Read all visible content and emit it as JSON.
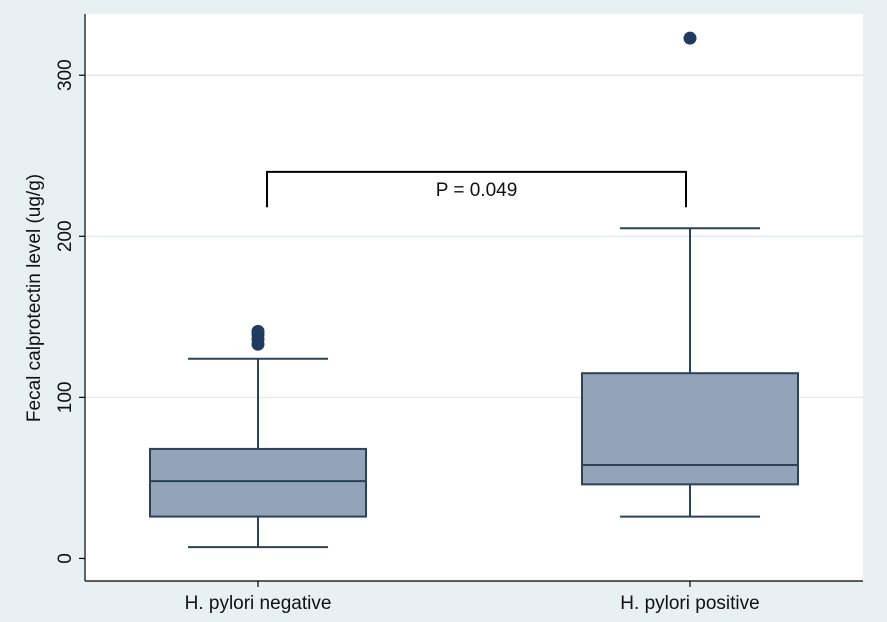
{
  "chart_data": {
    "type": "box",
    "title": "",
    "xlabel": "",
    "ylabel": "Fecal calprotectin level (ug/g)",
    "ylim": [
      -14,
      338
    ],
    "yticks": [
      0,
      100,
      200,
      300
    ],
    "grid": true,
    "categories": [
      "H. pylori negative",
      "H. pylori positive"
    ],
    "boxes": [
      {
        "category": "H. pylori negative",
        "whisker_low": 7,
        "q1": 26,
        "median": 48,
        "q3": 68,
        "whisker_high": 124,
        "outliers": [
          133,
          136,
          139,
          141
        ]
      },
      {
        "category": "H. pylori positive",
        "whisker_low": 26,
        "q1": 46,
        "median": 58,
        "q3": 115,
        "whisker_high": 205,
        "outliers": [
          323
        ]
      }
    ],
    "annotation": {
      "text": "P = 0.049",
      "between": [
        "H. pylori negative",
        "H. pylori positive"
      ],
      "bracket_top": 240,
      "bracket_bottom": 218
    },
    "colors": {
      "box_fill": "#93a4b8",
      "box_stroke": "#2b4259",
      "outlier": "#1f3b5f",
      "grid": "#e4eaee",
      "plot_bg": "#ffffff",
      "page_bg": "#e9f0f3"
    }
  }
}
